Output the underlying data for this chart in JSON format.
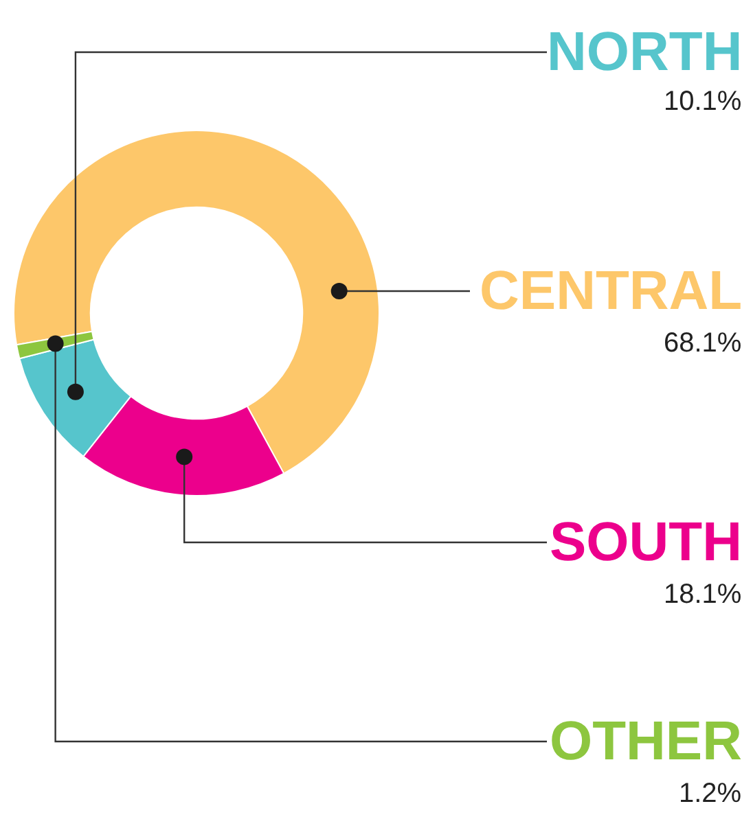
{
  "chart_data": {
    "type": "donut",
    "categories": [
      "CENTRAL",
      "SOUTH",
      "NORTH",
      "OTHER"
    ],
    "values": [
      68.1,
      18.1,
      10.1,
      1.2
    ],
    "colors": [
      "#fdc76a",
      "#ec008c",
      "#56c5cc",
      "#8dc63f"
    ],
    "value_labels": [
      "68.1%",
      "18.1%",
      "10.1%",
      "1.2%"
    ],
    "legend": false
  }
}
